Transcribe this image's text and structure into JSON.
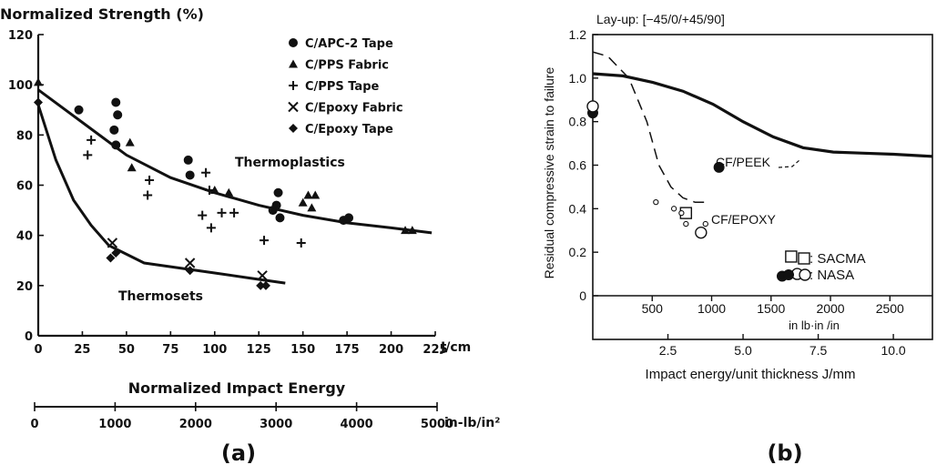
{
  "chart_data": [
    {
      "panel_label": "(a)",
      "type": "scatter",
      "title": "Normalized Strength (%)",
      "xlabel": "Normalized Impact Energy",
      "x_unit": "J/cm",
      "x2_unit": "in-lb/in²",
      "xlim": [
        0,
        225
      ],
      "ylim": [
        0,
        120
      ],
      "x_ticks": [
        0,
        25,
        50,
        75,
        100,
        125,
        150,
        175,
        200,
        225
      ],
      "y_ticks": [
        0,
        20,
        40,
        60,
        80,
        100,
        120
      ],
      "y_tick_labels": [
        "0",
        "20",
        "40",
        "60",
        "80",
        "100",
        "120"
      ],
      "x2_ticks": [
        0,
        1000,
        2000,
        3000,
        4000,
        5000
      ],
      "legend_position": "top-right",
      "series": [
        {
          "name": "C/APC-2 Tape",
          "marker": "circle",
          "points": [
            [
              23,
              90
            ],
            [
              44,
              93
            ],
            [
              43,
              82
            ],
            [
              45,
              88
            ],
            [
              44,
              76
            ],
            [
              85,
              70
            ],
            [
              86,
              64
            ],
            [
              133,
              50
            ],
            [
              135,
              52
            ],
            [
              136,
              57
            ],
            [
              137,
              47
            ],
            [
              173,
              46
            ],
            [
              176,
              47
            ]
          ]
        },
        {
          "name": "C/PPS Fabric",
          "marker": "triangle",
          "points": [
            [
              0,
              101
            ],
            [
              52,
              77
            ],
            [
              53,
              67
            ],
            [
              100,
              58
            ],
            [
              108,
              57
            ],
            [
              150,
              53
            ],
            [
              153,
              56
            ],
            [
              155,
              51
            ],
            [
              157,
              56
            ],
            [
              208,
              42
            ],
            [
              212,
              42
            ]
          ]
        },
        {
          "name": "C/PPS Tape",
          "marker": "plus",
          "points": [
            [
              30,
              78
            ],
            [
              28,
              72
            ],
            [
              63,
              62
            ],
            [
              62,
              56
            ],
            [
              95,
              65
            ],
            [
              97,
              58
            ],
            [
              93,
              48
            ],
            [
              98,
              43
            ],
            [
              104,
              49
            ],
            [
              111,
              49
            ],
            [
              128,
              38
            ],
            [
              149,
              37
            ]
          ]
        },
        {
          "name": "C/Epoxy Fabric",
          "marker": "x",
          "points": [
            [
              42,
              37
            ],
            [
              86,
              29
            ],
            [
              127,
              24
            ]
          ]
        },
        {
          "name": "C/Epoxy Tape",
          "marker": "diamond",
          "points": [
            [
              0,
              93
            ],
            [
              41,
              31
            ],
            [
              44,
              33
            ],
            [
              86,
              26
            ],
            [
              126,
              20
            ],
            [
              129,
              20
            ]
          ]
        }
      ],
      "curves": [
        {
          "label": "Thermoplastics",
          "points": [
            [
              0,
              98
            ],
            [
              25,
              85
            ],
            [
              50,
              72
            ],
            [
              75,
              63
            ],
            [
              100,
              57
            ],
            [
              125,
              52
            ],
            [
              150,
              48
            ],
            [
              175,
              45
            ],
            [
              200,
              43
            ],
            [
              223,
              41
            ]
          ]
        },
        {
          "label": "Thermosets",
          "points": [
            [
              0,
              92
            ],
            [
              10,
              70
            ],
            [
              20,
              54
            ],
            [
              30,
              44
            ],
            [
              40,
              36
            ],
            [
              60,
              29
            ],
            [
              80,
              27
            ],
            [
              100,
              25
            ],
            [
              120,
              23
            ],
            [
              140,
              21
            ]
          ]
        }
      ],
      "annotations": [
        "Thermoplastics",
        "Thermosets"
      ]
    },
    {
      "panel_label": "(b)",
      "type": "line",
      "title": "Lay-up: [−45/0/+45/90]",
      "xlabel": "Impact energy/unit thickness J/mm",
      "x2_label": "in lb·in /in",
      "ylabel": "Residual compressive strain to failure",
      "xlim": [
        0,
        11.3
      ],
      "ylim": [
        0,
        1.2
      ],
      "x_ticks": [
        2.5,
        5.0,
        7.5,
        10.0
      ],
      "x_tick_labels": [
        "2.5",
        "5.0",
        "7.5",
        "10.0"
      ],
      "y_ticks": [
        0,
        0.2,
        0.4,
        0.6,
        0.8,
        1.0,
        1.2
      ],
      "y_tick_labels": [
        "0",
        "0.2",
        "0.4",
        "0.6",
        "0.8",
        "1.0",
        "1.2"
      ],
      "x2_ticks": [
        500,
        1000,
        1500,
        2000,
        2500
      ],
      "series": [
        {
          "name": "CF/PEEK",
          "style": "solid",
          "points": [
            [
              0,
              1.02
            ],
            [
              1,
              1.01
            ],
            [
              2,
              0.98
            ],
            [
              3,
              0.94
            ],
            [
              4,
              0.88
            ],
            [
              5,
              0.8
            ],
            [
              6,
              0.73
            ],
            [
              7,
              0.68
            ],
            [
              8,
              0.66
            ],
            [
              9,
              0.655
            ],
            [
              10,
              0.65
            ],
            [
              11.3,
              0.64
            ]
          ]
        },
        {
          "name": "CF/EPOXY",
          "style": "dashed",
          "points": [
            [
              0,
              1.12
            ],
            [
              0.5,
              1.1
            ],
            [
              1.2,
              1.0
            ],
            [
              1.8,
              0.8
            ],
            [
              2.2,
              0.6
            ],
            [
              2.6,
              0.5
            ],
            [
              3.0,
              0.45
            ],
            [
              3.4,
              0.43
            ],
            [
              3.8,
              0.43
            ]
          ]
        }
      ],
      "markers": [
        {
          "group": "NASA",
          "shape": "filled-circle",
          "points": [
            [
              0,
              0.84
            ],
            [
              4.2,
              0.59
            ],
            [
              6.3,
              0.09
            ]
          ]
        },
        {
          "group": "NASA",
          "shape": "open-circle",
          "points": [
            [
              0,
              0.87
            ],
            [
              3.6,
              0.29
            ],
            [
              6.8,
              0.1
            ]
          ]
        },
        {
          "group": "SACMA",
          "shape": "open-square",
          "points": [
            [
              3.1,
              0.38
            ],
            [
              6.6,
              0.18
            ]
          ]
        },
        {
          "group": "small",
          "shape": "small-open-circle",
          "points": [
            [
              2.1,
              0.43
            ],
            [
              2.7,
              0.4
            ],
            [
              2.95,
              0.38
            ],
            [
              3.1,
              0.33
            ],
            [
              3.75,
              0.33
            ]
          ]
        }
      ],
      "legend": [
        {
          "marker": "open-square",
          "text": ": SACMA"
        },
        {
          "marker": "filled-open-circle",
          "text": ": NASA"
        }
      ],
      "annotations": [
        "CF/PEEK",
        "CF/EPOXY"
      ]
    }
  ]
}
